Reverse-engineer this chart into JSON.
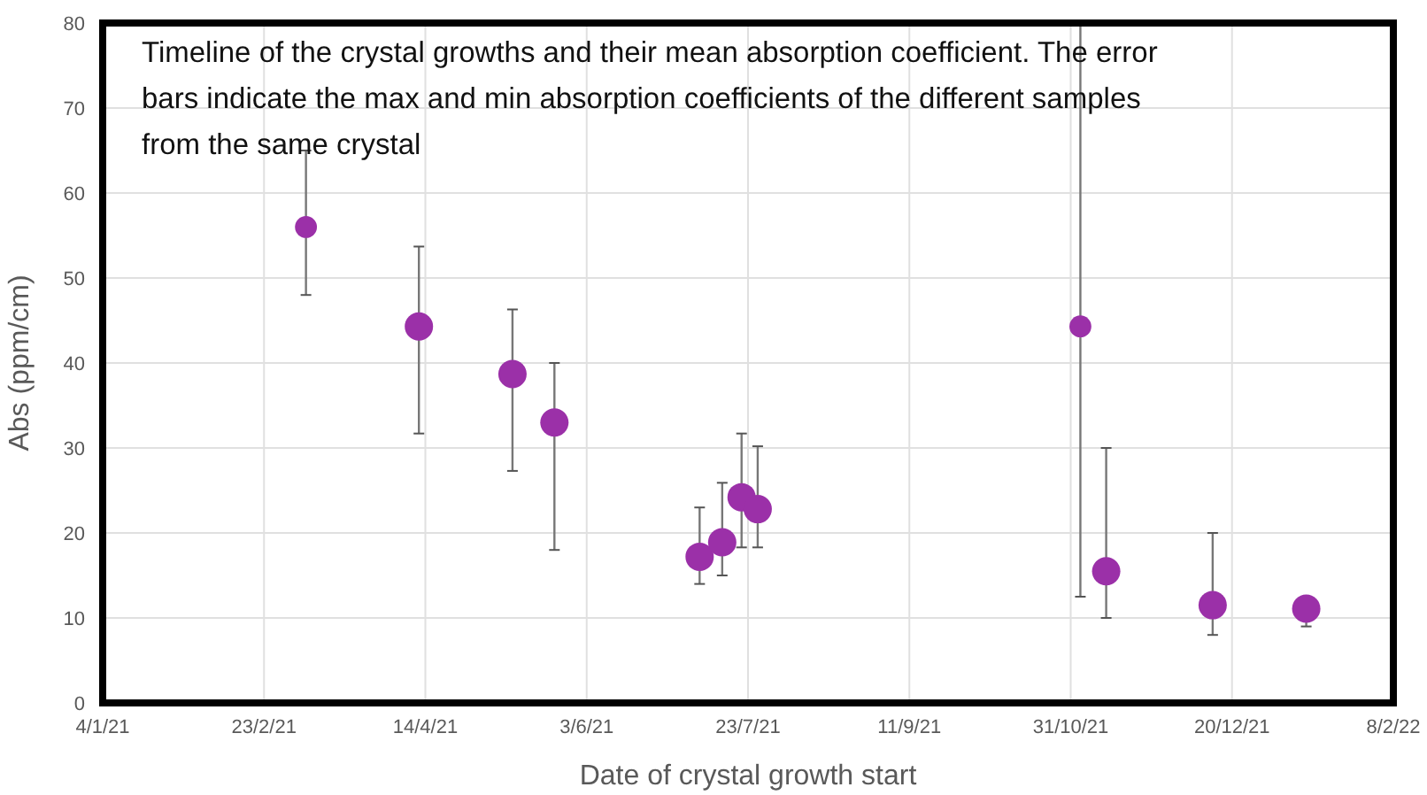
{
  "chart_data": {
    "type": "bubble",
    "title": "Timeline of the crystal growths and their mean absorption coefficient. The error bars indicate the max and min absorption coefficients of the different samples from the same crystal",
    "xlabel": "Date of crystal growth start",
    "ylabel": "Abs (ppm/cm)",
    "x": [
      "2021-03-08",
      "2021-04-12",
      "2021-05-11",
      "2021-05-24",
      "2021-07-08",
      "2021-07-15",
      "2021-07-21",
      "2021-07-26",
      "2021-11-03",
      "2021-11-11",
      "2021-12-14",
      "2022-01-12"
    ],
    "series": [
      {
        "color": "#9b30a8",
        "values": [
          56,
          44.3,
          38.7,
          33,
          17.2,
          18.9,
          24.2,
          22.8,
          44.3,
          15.5,
          11.5,
          11.1
        ],
        "sizes": [
          0.6,
          1,
          1,
          1,
          1,
          1,
          1,
          1,
          0.6,
          1,
          1,
          1
        ],
        "errors": [
          [
            48,
            65
          ],
          [
            31.7,
            53.7
          ],
          [
            27.3,
            46.3
          ],
          [
            18,
            40
          ],
          [
            14,
            23
          ],
          [
            15,
            25.9
          ],
          [
            18.3,
            31.7
          ],
          [
            18.3,
            30.2
          ],
          [
            12.5,
            80
          ],
          [
            10,
            30
          ],
          [
            8,
            20
          ],
          [
            9,
            12
          ]
        ]
      }
    ],
    "xlim": [
      "2021-01-04",
      "2022-02-08"
    ],
    "xticks": [
      {
        "value": "2021-01-04",
        "label": "4/1/21"
      },
      {
        "value": "2021-02-23",
        "label": "23/2/21"
      },
      {
        "value": "2021-04-14",
        "label": "14/4/21"
      },
      {
        "value": "2021-06-03",
        "label": "3/6/21"
      },
      {
        "value": "2021-07-23",
        "label": "23/7/21"
      },
      {
        "value": "2021-09-11",
        "label": "11/9/21"
      },
      {
        "value": "2021-10-31",
        "label": "31/10/21"
      },
      {
        "value": "2021-12-20",
        "label": "20/12/21"
      },
      {
        "value": "2022-02-08",
        "label": "8/2/22"
      }
    ],
    "ylim": [
      0,
      80
    ],
    "yticks": [
      0,
      10,
      20,
      30,
      40,
      50,
      60,
      70,
      80
    ],
    "grid": true,
    "marker": "circle"
  }
}
